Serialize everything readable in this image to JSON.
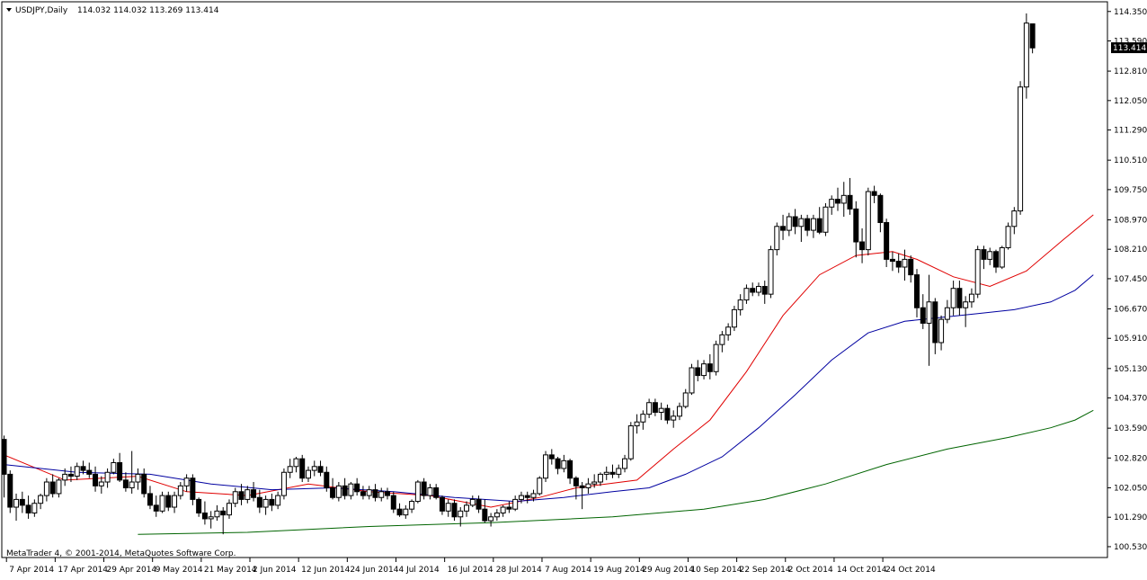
{
  "header": {
    "symbol_label": "USDJPY,Daily",
    "ohlc_values": "114.032 114.032 113.269 113.414"
  },
  "footer": {
    "copyright": "MetaTrader 4, © 2001-2014, MetaQuotes Software Corp."
  },
  "price_axis": {
    "ticks": [
      "114.350",
      "113.590",
      "112.810",
      "112.050",
      "111.290",
      "110.510",
      "109.750",
      "108.970",
      "108.210",
      "107.450",
      "106.670",
      "105.910",
      "105.130",
      "104.370",
      "103.590",
      "102.820",
      "102.050",
      "101.290",
      "100.530"
    ],
    "current_price": "113.414"
  },
  "time_axis": {
    "ticks": [
      "7 Apr 2014",
      "17 Apr 2014",
      "29 Apr 2014",
      "9 May 2014",
      "21 May 2014",
      "2 Jun 2014",
      "12 Jun 2014",
      "24 Jun 2014",
      "4 Jul 2014",
      "16 Jul 2014",
      "28 Jul 2014",
      "7 Aug 2014",
      "19 Aug 2014",
      "29 Aug 2014",
      "10 Sep 2014",
      "22 Sep 2014",
      "2 Oct 2014",
      "14 Oct 2014",
      "24 Oct 2014"
    ]
  },
  "colors": {
    "background": "#ffffff",
    "candle_bull": "#ffffff",
    "candle_bear": "#000000",
    "ma_fast": "#e00000",
    "ma_mid": "#0000a0",
    "ma_slow": "#006400",
    "price_label_bg": "#000000",
    "price_label_text": "#ffffff"
  },
  "chart_data": {
    "type": "candlestick",
    "x_label_interval": 8,
    "ylim": [
      100.25,
      114.6
    ],
    "candles": [
      [
        103.3,
        103.4,
        101.8,
        102.4
      ],
      [
        102.4,
        102.5,
        101.4,
        101.55
      ],
      [
        101.55,
        101.9,
        101.2,
        101.75
      ],
      [
        101.75,
        101.95,
        101.4,
        101.6
      ],
      [
        101.6,
        101.85,
        101.25,
        101.4
      ],
      [
        101.4,
        101.75,
        101.3,
        101.65
      ],
      [
        101.65,
        101.9,
        101.5,
        101.85
      ],
      [
        101.85,
        102.3,
        101.7,
        102.2
      ],
      [
        102.2,
        102.4,
        101.8,
        101.9
      ],
      [
        101.9,
        102.3,
        101.8,
        102.25
      ],
      [
        102.25,
        102.55,
        102.1,
        102.4
      ],
      [
        102.4,
        102.6,
        102.2,
        102.35
      ],
      [
        102.35,
        102.7,
        102.25,
        102.6
      ],
      [
        102.6,
        102.75,
        102.4,
        102.5
      ],
      [
        102.5,
        102.7,
        102.3,
        102.4
      ],
      [
        102.4,
        102.6,
        101.95,
        102.1
      ],
      [
        102.1,
        102.35,
        101.9,
        102.2
      ],
      [
        102.2,
        102.55,
        102.05,
        102.45
      ],
      [
        102.45,
        102.8,
        102.4,
        102.7
      ],
      [
        102.7,
        102.95,
        102.2,
        102.25
      ],
      [
        102.25,
        102.45,
        101.95,
        102.05
      ],
      [
        102.05,
        103.0,
        101.9,
        102.2
      ],
      [
        102.2,
        102.55,
        102.0,
        102.4
      ],
      [
        102.4,
        102.55,
        101.8,
        101.9
      ],
      [
        101.9,
        102.1,
        101.5,
        101.6
      ],
      [
        101.6,
        101.85,
        101.3,
        101.45
      ],
      [
        101.45,
        101.95,
        101.4,
        101.85
      ],
      [
        101.85,
        101.95,
        101.45,
        101.55
      ],
      [
        101.55,
        101.95,
        101.4,
        101.85
      ],
      [
        101.85,
        102.2,
        101.75,
        102.1
      ],
      [
        102.1,
        102.4,
        101.95,
        102.3
      ],
      [
        102.3,
        102.4,
        101.6,
        101.75
      ],
      [
        101.75,
        101.8,
        101.3,
        101.4
      ],
      [
        101.4,
        101.7,
        101.1,
        101.25
      ],
      [
        101.25,
        101.45,
        101.0,
        101.3
      ],
      [
        101.3,
        101.6,
        101.2,
        101.45
      ],
      [
        101.45,
        101.55,
        100.85,
        101.35
      ],
      [
        101.35,
        101.75,
        101.25,
        101.65
      ],
      [
        101.65,
        102.05,
        101.55,
        101.95
      ],
      [
        101.95,
        102.15,
        101.6,
        101.75
      ],
      [
        101.75,
        102.1,
        101.65,
        102.0
      ],
      [
        102.0,
        102.2,
        101.7,
        101.8
      ],
      [
        101.8,
        102.0,
        101.4,
        101.55
      ],
      [
        101.55,
        101.85,
        101.35,
        101.75
      ],
      [
        101.75,
        101.9,
        101.45,
        101.6
      ],
      [
        101.6,
        101.95,
        101.5,
        101.85
      ],
      [
        101.85,
        102.55,
        101.75,
        102.45
      ],
      [
        102.45,
        102.8,
        102.3,
        102.6
      ],
      [
        102.6,
        102.85,
        102.45,
        102.8
      ],
      [
        102.8,
        102.9,
        102.2,
        102.3
      ],
      [
        102.3,
        102.6,
        102.2,
        102.5
      ],
      [
        102.5,
        102.75,
        102.35,
        102.6
      ],
      [
        102.6,
        102.75,
        102.35,
        102.45
      ],
      [
        102.45,
        102.6,
        101.95,
        102.05
      ],
      [
        102.05,
        102.3,
        101.75,
        101.8
      ],
      [
        101.8,
        102.2,
        101.7,
        102.1
      ],
      [
        102.1,
        102.3,
        101.75,
        101.85
      ],
      [
        101.85,
        102.2,
        101.75,
        102.15
      ],
      [
        102.15,
        102.3,
        101.85,
        101.95
      ],
      [
        101.95,
        102.1,
        101.75,
        101.85
      ],
      [
        101.85,
        102.1,
        101.75,
        102.0
      ],
      [
        102.0,
        102.15,
        101.7,
        101.8
      ],
      [
        101.8,
        102.05,
        101.7,
        101.95
      ],
      [
        101.95,
        102.05,
        101.75,
        101.85
      ],
      [
        101.85,
        101.95,
        101.4,
        101.5
      ],
      [
        101.5,
        101.65,
        101.3,
        101.35
      ],
      [
        101.35,
        101.6,
        101.25,
        101.5
      ],
      [
        101.5,
        101.75,
        101.4,
        101.7
      ],
      [
        101.7,
        102.25,
        101.65,
        102.2
      ],
      [
        102.2,
        102.3,
        101.75,
        101.85
      ],
      [
        101.85,
        102.15,
        101.75,
        102.05
      ],
      [
        102.05,
        102.15,
        101.75,
        101.8
      ],
      [
        101.8,
        101.85,
        101.35,
        101.45
      ],
      [
        101.45,
        101.75,
        101.3,
        101.65
      ],
      [
        101.65,
        101.75,
        101.2,
        101.3
      ],
      [
        101.3,
        101.55,
        101.05,
        101.45
      ],
      [
        101.45,
        101.7,
        101.3,
        101.6
      ],
      [
        101.6,
        101.85,
        101.55,
        101.75
      ],
      [
        101.75,
        101.85,
        101.4,
        101.5
      ],
      [
        101.5,
        101.75,
        101.15,
        101.2
      ],
      [
        101.2,
        101.4,
        101.05,
        101.3
      ],
      [
        101.3,
        101.5,
        101.2,
        101.4
      ],
      [
        101.4,
        101.6,
        101.3,
        101.55
      ],
      [
        101.55,
        101.7,
        101.4,
        101.5
      ],
      [
        101.5,
        101.85,
        101.45,
        101.75
      ],
      [
        101.75,
        101.95,
        101.65,
        101.85
      ],
      [
        101.85,
        101.95,
        101.65,
        101.8
      ],
      [
        101.8,
        102.0,
        101.7,
        101.9
      ],
      [
        101.9,
        102.35,
        101.85,
        102.3
      ],
      [
        102.3,
        103.0,
        102.2,
        102.9
      ],
      [
        102.9,
        103.05,
        102.65,
        102.8
      ],
      [
        102.8,
        102.85,
        102.4,
        102.55
      ],
      [
        102.55,
        102.9,
        102.45,
        102.75
      ],
      [
        102.75,
        102.8,
        102.15,
        102.3
      ],
      [
        102.3,
        102.35,
        101.75,
        102.1
      ],
      [
        102.1,
        102.2,
        101.5,
        102.05
      ],
      [
        102.05,
        102.3,
        101.9,
        102.15
      ],
      [
        102.15,
        102.4,
        102.05,
        102.2
      ],
      [
        102.2,
        102.45,
        102.1,
        102.4
      ],
      [
        102.4,
        102.6,
        102.25,
        102.45
      ],
      [
        102.45,
        102.65,
        102.3,
        102.4
      ],
      [
        102.4,
        102.65,
        102.3,
        102.55
      ],
      [
        102.55,
        102.9,
        102.45,
        102.8
      ],
      [
        102.8,
        103.75,
        102.75,
        103.65
      ],
      [
        103.65,
        103.95,
        103.45,
        103.75
      ],
      [
        103.75,
        104.05,
        103.55,
        103.95
      ],
      [
        103.95,
        104.35,
        103.85,
        104.25
      ],
      [
        104.25,
        104.35,
        103.9,
        104.0
      ],
      [
        104.0,
        104.25,
        103.8,
        104.1
      ],
      [
        104.1,
        104.2,
        103.7,
        103.8
      ],
      [
        103.8,
        104.05,
        103.6,
        103.9
      ],
      [
        103.9,
        104.25,
        103.8,
        104.15
      ],
      [
        104.15,
        104.6,
        104.1,
        104.5
      ],
      [
        104.5,
        105.25,
        104.45,
        105.15
      ],
      [
        105.15,
        105.35,
        104.8,
        104.95
      ],
      [
        104.95,
        105.35,
        104.85,
        105.25
      ],
      [
        105.25,
        105.5,
        104.85,
        105.05
      ],
      [
        105.05,
        105.85,
        104.95,
        105.75
      ],
      [
        105.75,
        106.1,
        105.55,
        106.0
      ],
      [
        106.0,
        106.3,
        105.85,
        106.2
      ],
      [
        106.2,
        106.75,
        106.1,
        106.65
      ],
      [
        106.65,
        107.05,
        106.5,
        106.9
      ],
      [
        106.9,
        107.3,
        106.8,
        107.2
      ],
      [
        107.2,
        107.35,
        107.0,
        107.1
      ],
      [
        107.1,
        107.35,
        107.0,
        107.25
      ],
      [
        107.25,
        107.4,
        106.8,
        107.05
      ],
      [
        107.05,
        108.3,
        106.95,
        108.2
      ],
      [
        108.2,
        108.9,
        108.05,
        108.8
      ],
      [
        108.8,
        109.1,
        108.45,
        108.7
      ],
      [
        108.7,
        109.15,
        108.55,
        109.05
      ],
      [
        109.05,
        109.25,
        108.6,
        108.8
      ],
      [
        108.8,
        109.1,
        108.4,
        109.0
      ],
      [
        109.0,
        109.1,
        108.55,
        108.7
      ],
      [
        108.7,
        109.1,
        108.5,
        109.0
      ],
      [
        109.0,
        109.3,
        108.6,
        108.65
      ],
      [
        108.65,
        109.4,
        108.55,
        109.3
      ],
      [
        109.3,
        109.6,
        109.1,
        109.5
      ],
      [
        109.5,
        109.8,
        109.2,
        109.4
      ],
      [
        109.4,
        109.95,
        109.05,
        109.6
      ],
      [
        109.6,
        110.05,
        109.1,
        109.25
      ],
      [
        109.25,
        109.45,
        108.0,
        108.4
      ],
      [
        108.4,
        108.75,
        107.85,
        108.2
      ],
      [
        108.2,
        109.8,
        108.05,
        109.7
      ],
      [
        109.7,
        109.85,
        109.4,
        109.6
      ],
      [
        109.6,
        109.65,
        108.65,
        108.9
      ],
      [
        108.9,
        109.0,
        107.75,
        107.95
      ],
      [
        107.95,
        108.15,
        107.65,
        107.9
      ],
      [
        107.9,
        108.1,
        107.6,
        107.75
      ],
      [
        107.75,
        108.2,
        107.4,
        107.95
      ],
      [
        107.95,
        108.05,
        107.35,
        107.55
      ],
      [
        107.55,
        107.7,
        106.45,
        106.7
      ],
      [
        106.7,
        107.05,
        106.15,
        106.3
      ],
      [
        106.3,
        107.55,
        105.2,
        106.85
      ],
      [
        106.85,
        106.95,
        105.5,
        105.8
      ],
      [
        105.8,
        106.5,
        105.6,
        106.4
      ],
      [
        106.4,
        106.9,
        106.3,
        106.7
      ],
      [
        106.7,
        107.4,
        106.5,
        107.2
      ],
      [
        107.2,
        107.4,
        106.5,
        106.7
      ],
      [
        106.7,
        107.0,
        106.2,
        106.85
      ],
      [
        106.85,
        107.2,
        106.7,
        107.05
      ],
      [
        107.05,
        108.3,
        106.95,
        108.2
      ],
      [
        108.2,
        108.3,
        107.7,
        107.95
      ],
      [
        107.95,
        108.25,
        107.8,
        108.15
      ],
      [
        108.15,
        108.2,
        107.6,
        107.75
      ],
      [
        107.75,
        108.3,
        107.7,
        108.25
      ],
      [
        108.25,
        108.9,
        108.2,
        108.8
      ],
      [
        108.8,
        109.3,
        108.6,
        109.2
      ],
      [
        109.2,
        112.55,
        109.1,
        112.4
      ],
      [
        112.4,
        114.3,
        112.1,
        114.05
      ],
      [
        114.03,
        114.03,
        113.27,
        113.41
      ]
    ],
    "ma_fast": [
      [
        0,
        102.9
      ],
      [
        10,
        102.25
      ],
      [
        22,
        102.35
      ],
      [
        30,
        101.95
      ],
      [
        40,
        101.85
      ],
      [
        50,
        102.15
      ],
      [
        60,
        101.95
      ],
      [
        70,
        101.85
      ],
      [
        80,
        101.55
      ],
      [
        88,
        101.8
      ],
      [
        94,
        102.05
      ],
      [
        104,
        102.25
      ],
      [
        110,
        103.05
      ],
      [
        116,
        103.8
      ],
      [
        122,
        105.05
      ],
      [
        128,
        106.5
      ],
      [
        134,
        107.55
      ],
      [
        140,
        108.05
      ],
      [
        146,
        108.15
      ],
      [
        150,
        107.95
      ],
      [
        156,
        107.5
      ],
      [
        162,
        107.25
      ],
      [
        168,
        107.65
      ],
      [
        174,
        108.45
      ],
      [
        179,
        109.1
      ]
    ],
    "ma_mid": [
      [
        0,
        102.65
      ],
      [
        12,
        102.45
      ],
      [
        24,
        102.4
      ],
      [
        34,
        102.15
      ],
      [
        44,
        102.0
      ],
      [
        54,
        102.05
      ],
      [
        64,
        101.95
      ],
      [
        74,
        101.8
      ],
      [
        84,
        101.7
      ],
      [
        92,
        101.8
      ],
      [
        100,
        101.95
      ],
      [
        106,
        102.05
      ],
      [
        112,
        102.4
      ],
      [
        118,
        102.85
      ],
      [
        124,
        103.6
      ],
      [
        130,
        104.45
      ],
      [
        136,
        105.35
      ],
      [
        142,
        106.05
      ],
      [
        148,
        106.35
      ],
      [
        154,
        106.45
      ],
      [
        160,
        106.55
      ],
      [
        166,
        106.65
      ],
      [
        172,
        106.85
      ],
      [
        176,
        107.15
      ],
      [
        179,
        107.55
      ]
    ],
    "ma_slow": [
      [
        22,
        100.85
      ],
      [
        40,
        100.9
      ],
      [
        60,
        101.05
      ],
      [
        80,
        101.15
      ],
      [
        100,
        101.3
      ],
      [
        115,
        101.5
      ],
      [
        125,
        101.75
      ],
      [
        135,
        102.15
      ],
      [
        145,
        102.65
      ],
      [
        155,
        103.05
      ],
      [
        165,
        103.35
      ],
      [
        172,
        103.6
      ],
      [
        176,
        103.8
      ],
      [
        179,
        104.05
      ]
    ]
  }
}
